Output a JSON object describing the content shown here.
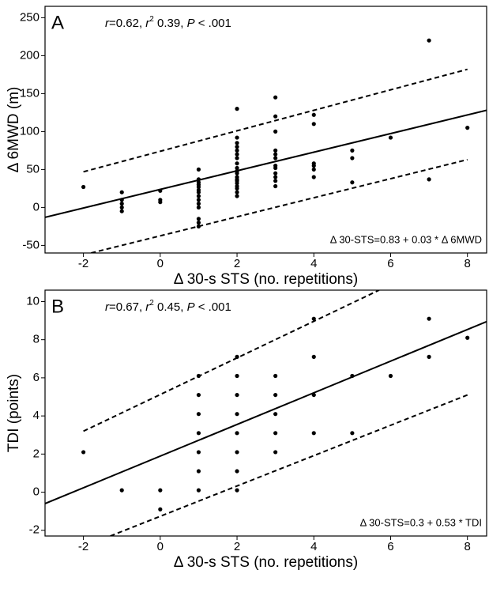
{
  "chart_data": [
    {
      "type": "scatter",
      "panel": "A",
      "stats": [
        {
          "text": "r",
          "style": "italic"
        },
        {
          "text": "=0.62, ",
          "style": "normal"
        },
        {
          "text": "r",
          "style": "italic"
        },
        {
          "text": "2",
          "style": "sup"
        },
        {
          "text": " 0.39, ",
          "style": "normal"
        },
        {
          "text": "P",
          "style": "italic"
        },
        {
          "text": " < .001",
          "style": "normal"
        }
      ],
      "equation": "Δ 30-STS=0.83 + 0.03 * Δ 6MWD",
      "xlabel": "Δ 30-s STS (no. repetitions)",
      "ylabel": "Δ 6MWD (m)",
      "xlim": [
        -3.0,
        8.5
      ],
      "ylim": [
        -60,
        265
      ],
      "xticks": [
        -2,
        0,
        2,
        4,
        6,
        8
      ],
      "yticks": [
        -50,
        0,
        50,
        100,
        150,
        200,
        250
      ],
      "color": "#000000",
      "x": [
        -2,
        -1,
        -1,
        -1,
        -1,
        -1,
        0,
        0,
        0,
        1,
        1,
        1,
        1,
        1,
        1,
        1,
        1,
        1,
        1,
        1,
        1,
        1,
        1,
        2,
        2,
        2,
        2,
        2,
        2,
        2,
        2,
        2,
        2,
        2,
        2,
        2,
        2,
        2,
        2,
        2,
        2,
        2,
        3,
        3,
        3,
        3,
        3,
        3,
        3,
        3,
        3,
        3,
        3,
        3,
        4,
        4,
        4,
        4,
        4,
        4,
        5,
        5,
        5,
        6,
        7,
        7,
        8
      ],
      "values": [
        27,
        20,
        10,
        5,
        0,
        -5,
        22,
        10,
        7,
        50,
        37,
        33,
        30,
        27,
        23,
        20,
        15,
        10,
        5,
        0,
        -15,
        -20,
        -25,
        130,
        92,
        85,
        80,
        75,
        70,
        65,
        58,
        52,
        48,
        45,
        40,
        37,
        35,
        32,
        28,
        25,
        20,
        15,
        145,
        120,
        100,
        75,
        70,
        65,
        55,
        52,
        45,
        40,
        35,
        28,
        122,
        110,
        58,
        55,
        50,
        40,
        75,
        65,
        33,
        92,
        220,
        37,
        105
      ],
      "lines": [
        {
          "style": "solid",
          "x": [
            -3.0,
            8.5
          ],
          "values": [
            -13,
            128
          ]
        },
        {
          "style": "dashed",
          "x": [
            -2,
            8
          ],
          "values": [
            47,
            182
          ]
        },
        {
          "style": "dashed",
          "x": [
            -1.8,
            8
          ],
          "values": [
            -60,
            63
          ]
        }
      ]
    },
    {
      "type": "scatter",
      "panel": "B",
      "stats": [
        {
          "text": "r",
          "style": "italic"
        },
        {
          "text": "=0.67, ",
          "style": "normal"
        },
        {
          "text": "r",
          "style": "italic"
        },
        {
          "text": "2",
          "style": "sup"
        },
        {
          "text": " 0.45, ",
          "style": "normal"
        },
        {
          "text": "P",
          "style": "italic"
        },
        {
          "text": " < .001",
          "style": "normal"
        }
      ],
      "equation": "Δ 30-STS=0.3 + 0.53 * TDI",
      "xlabel": "Δ 30-s STS (no. repetitions)",
      "ylabel": "TDI (points)",
      "xlim": [
        -3.0,
        8.5
      ],
      "ylim": [
        -2.3,
        10.6
      ],
      "xticks": [
        -2,
        0,
        2,
        4,
        6,
        8
      ],
      "yticks": [
        -2,
        0,
        2,
        4,
        6,
        8,
        10
      ],
      "color": "#000000",
      "x": [
        -2,
        -1,
        0,
        0,
        1,
        1,
        1,
        1,
        1,
        1,
        1,
        2,
        2,
        2,
        2,
        2,
        2,
        2,
        2,
        3,
        3,
        3,
        3,
        3,
        4,
        4,
        4,
        4,
        5,
        5,
        6,
        7,
        7,
        8
      ],
      "values": [
        2.1,
        0.1,
        0.1,
        -0.9,
        6.1,
        5.1,
        4.1,
        3.1,
        2.1,
        1.1,
        0.1,
        7.1,
        6.1,
        5.1,
        4.1,
        3.1,
        2.1,
        1.1,
        0.1,
        6.1,
        5.1,
        4.1,
        3.1,
        2.1,
        9.1,
        7.1,
        5.1,
        3.1,
        6.1,
        3.1,
        6.1,
        9.1,
        7.1,
        8.1
      ],
      "lines": [
        {
          "style": "solid",
          "x": [
            -3.0,
            8.5
          ],
          "values": [
            -0.6,
            8.95
          ]
        },
        {
          "style": "dashed",
          "x": [
            -2,
            5.7
          ],
          "values": [
            3.2,
            10.6
          ]
        },
        {
          "style": "dashed",
          "x": [
            -1.3,
            8
          ],
          "values": [
            -2.3,
            5.1
          ]
        }
      ]
    }
  ]
}
